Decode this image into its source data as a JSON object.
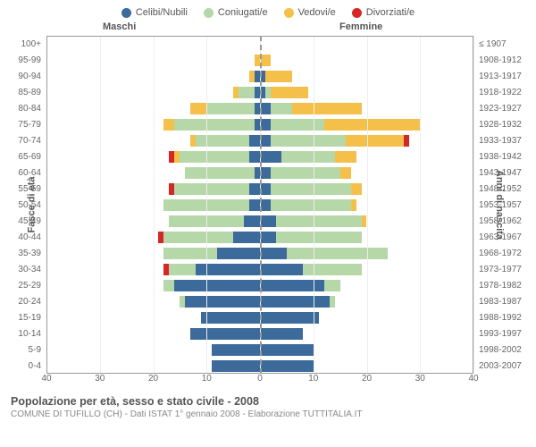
{
  "legend": [
    {
      "label": "Celibi/Nubili",
      "color": "#3b6a9b"
    },
    {
      "label": "Coniugati/e",
      "color": "#b6d7a8"
    },
    {
      "label": "Vedovi/e",
      "color": "#f5c04a"
    },
    {
      "label": "Divorziati/e",
      "color": "#d62728"
    }
  ],
  "gender_labels": {
    "male": "Maschi",
    "female": "Femmine"
  },
  "axis_titles": {
    "left": "Fasce di età",
    "right": "Anni di nascita"
  },
  "colors": {
    "celibi": "#3b6a9b",
    "coniugati": "#b6d7a8",
    "vedovi": "#f5c04a",
    "divorziati": "#d62728",
    "grid": "#eeeeee",
    "border": "#999999",
    "bg": "#ffffff"
  },
  "x_axis": {
    "max": 40,
    "ticks": [
      40,
      30,
      20,
      10,
      0,
      10,
      20,
      30,
      40
    ]
  },
  "rows": [
    {
      "age": "100+",
      "birth": "≤ 1907",
      "m": [
        0,
        0,
        0,
        0
      ],
      "f": [
        0,
        0,
        0,
        0
      ]
    },
    {
      "age": "95-99",
      "birth": "1908-1912",
      "m": [
        0,
        0,
        1,
        0
      ],
      "f": [
        0,
        0,
        2,
        0
      ]
    },
    {
      "age": "90-94",
      "birth": "1913-1917",
      "m": [
        1,
        0,
        1,
        0
      ],
      "f": [
        1,
        0,
        5,
        0
      ]
    },
    {
      "age": "85-89",
      "birth": "1918-1922",
      "m": [
        1,
        3,
        1,
        0
      ],
      "f": [
        1,
        1,
        7,
        0
      ]
    },
    {
      "age": "80-84",
      "birth": "1923-1927",
      "m": [
        1,
        9,
        3,
        0
      ],
      "f": [
        2,
        4,
        13,
        0
      ]
    },
    {
      "age": "75-79",
      "birth": "1928-1932",
      "m": [
        1,
        15,
        2,
        0
      ],
      "f": [
        2,
        10,
        18,
        0
      ]
    },
    {
      "age": "70-74",
      "birth": "1933-1937",
      "m": [
        2,
        10,
        1,
        0
      ],
      "f": [
        2,
        14,
        11,
        1
      ]
    },
    {
      "age": "65-69",
      "birth": "1938-1942",
      "m": [
        2,
        13,
        1,
        1
      ],
      "f": [
        4,
        10,
        4,
        0
      ]
    },
    {
      "age": "60-64",
      "birth": "1943-1947",
      "m": [
        1,
        13,
        0,
        0
      ],
      "f": [
        2,
        13,
        2,
        0
      ]
    },
    {
      "age": "55-59",
      "birth": "1948-1952",
      "m": [
        2,
        14,
        0,
        1
      ],
      "f": [
        2,
        15,
        2,
        0
      ]
    },
    {
      "age": "50-54",
      "birth": "1953-1957",
      "m": [
        2,
        16,
        0,
        0
      ],
      "f": [
        2,
        15,
        1,
        0
      ]
    },
    {
      "age": "45-49",
      "birth": "1958-1962",
      "m": [
        3,
        14,
        0,
        0
      ],
      "f": [
        3,
        16,
        1,
        0
      ]
    },
    {
      "age": "40-44",
      "birth": "1963-1967",
      "m": [
        5,
        13,
        0,
        1
      ],
      "f": [
        3,
        16,
        0,
        0
      ]
    },
    {
      "age": "35-39",
      "birth": "1968-1972",
      "m": [
        8,
        10,
        0,
        0
      ],
      "f": [
        5,
        19,
        0,
        0
      ]
    },
    {
      "age": "30-34",
      "birth": "1973-1977",
      "m": [
        12,
        5,
        0,
        1
      ],
      "f": [
        8,
        11,
        0,
        0
      ]
    },
    {
      "age": "25-29",
      "birth": "1978-1982",
      "m": [
        16,
        2,
        0,
        0
      ],
      "f": [
        12,
        3,
        0,
        0
      ]
    },
    {
      "age": "20-24",
      "birth": "1983-1987",
      "m": [
        14,
        1,
        0,
        0
      ],
      "f": [
        13,
        1,
        0,
        0
      ]
    },
    {
      "age": "15-19",
      "birth": "1988-1992",
      "m": [
        11,
        0,
        0,
        0
      ],
      "f": [
        11,
        0,
        0,
        0
      ]
    },
    {
      "age": "10-14",
      "birth": "1993-1997",
      "m": [
        13,
        0,
        0,
        0
      ],
      "f": [
        8,
        0,
        0,
        0
      ]
    },
    {
      "age": "5-9",
      "birth": "1998-2002",
      "m": [
        9,
        0,
        0,
        0
      ],
      "f": [
        10,
        0,
        0,
        0
      ]
    },
    {
      "age": "0-4",
      "birth": "2003-2007",
      "m": [
        9,
        0,
        0,
        0
      ],
      "f": [
        10,
        0,
        0,
        0
      ]
    }
  ],
  "footer": {
    "title": "Popolazione per età, sesso e stato civile - 2008",
    "subtitle": "COMUNE DI TUFILLO (CH) - Dati ISTAT 1° gennaio 2008 - Elaborazione TUTTITALIA.IT"
  }
}
